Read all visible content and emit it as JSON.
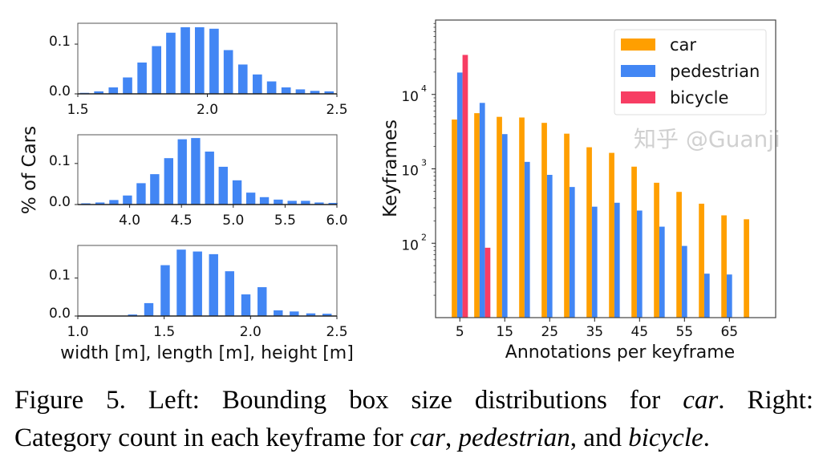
{
  "colors": {
    "car": "#ff9f00",
    "pedestrian": "#4286f4",
    "bicycle": "#f73d63",
    "hist": "#4286f4"
  },
  "chart_data": [
    {
      "type": "bar",
      "panel": "left-top",
      "xlim": [
        1.5,
        2.5
      ],
      "ylim": [
        0,
        0.142
      ],
      "xticks": [
        "1.5",
        "2.0",
        "2.5"
      ],
      "yticks": [
        "0.0",
        "0.1"
      ],
      "x": [
        1.526,
        1.581,
        1.637,
        1.692,
        1.748,
        1.804,
        1.859,
        1.915,
        1.97,
        2.026,
        2.081,
        2.137,
        2.193,
        2.248,
        2.304,
        2.359,
        2.415,
        2.47
      ],
      "values": [
        0.002,
        0.005,
        0.013,
        0.033,
        0.063,
        0.096,
        0.123,
        0.134,
        0.134,
        0.131,
        0.088,
        0.059,
        0.039,
        0.025,
        0.013,
        0.009,
        0.006,
        0.005
      ]
    },
    {
      "type": "bar",
      "panel": "left-middle",
      "ylabel": "% of Cars",
      "xlim": [
        3.5,
        6.0
      ],
      "ylim": [
        0,
        0.17
      ],
      "xticks": [
        "4.0",
        "4.5",
        "5.0",
        "5.5",
        "6.0"
      ],
      "yticks": [
        "0.0",
        "0.1"
      ],
      "x": [
        3.577,
        3.714,
        3.848,
        3.979,
        4.111,
        4.242,
        4.377,
        4.508,
        4.637,
        4.771,
        4.903,
        5.037,
        5.169,
        5.3,
        5.434,
        5.568,
        5.697,
        5.829,
        5.963
      ],
      "values": [
        0.003,
        0.005,
        0.011,
        0.022,
        0.052,
        0.074,
        0.113,
        0.159,
        0.162,
        0.129,
        0.092,
        0.059,
        0.029,
        0.018,
        0.012,
        0.009,
        0.009,
        0.005,
        0.004
      ]
    },
    {
      "type": "bar",
      "panel": "left-bottom",
      "xlabel": "width [m], length [m], height [m]",
      "xlim": [
        1.0,
        2.5
      ],
      "ylim": [
        0,
        0.186
      ],
      "xticks": [
        "1.0",
        "1.5",
        "2.0",
        "2.5"
      ],
      "yticks": [
        "0.0",
        "0.1"
      ],
      "x": [
        1.317,
        1.411,
        1.506,
        1.599,
        1.693,
        1.786,
        1.879,
        1.973,
        2.067,
        2.16,
        2.253,
        2.349,
        2.443
      ],
      "values": [
        0.004,
        0.034,
        0.134,
        0.175,
        0.17,
        0.163,
        0.118,
        0.057,
        0.076,
        0.015,
        0.012,
        0.007,
        0.006
      ]
    },
    {
      "type": "bar",
      "panel": "right",
      "xlabel": "Annotations per keyframe",
      "ylabel": "Keyframes",
      "yscale": "log",
      "xlim": [
        -0.4,
        75.3
      ],
      "ylim": [
        10,
        100000
      ],
      "xticks": [
        "5",
        "15",
        "25",
        "35",
        "45",
        "55",
        "65"
      ],
      "yticks": [
        {
          "base": "10",
          "exp": "2"
        },
        {
          "base": "10",
          "exp": "3"
        },
        {
          "base": "10",
          "exp": "4"
        }
      ],
      "legend": "top-right",
      "categories": [
        5,
        10,
        15,
        20,
        25,
        30,
        35,
        40,
        45,
        50,
        55,
        60,
        65,
        70
      ],
      "series": [
        {
          "name": "car",
          "values": [
            4600,
            5600,
            5000,
            4900,
            4150,
            2970,
            1950,
            1640,
            1070,
            650,
            490,
            340,
            237,
            210
          ]
        },
        {
          "name": "pedestrian",
          "values": [
            19700,
            7700,
            2930,
            1240,
            830,
            570,
            310,
            350,
            275,
            167,
            92,
            39,
            38,
            null
          ]
        },
        {
          "name": "bicycle",
          "values": [
            34000,
            87,
            null,
            null,
            null,
            null,
            null,
            null,
            null,
            null,
            null,
            null,
            null,
            null
          ]
        }
      ]
    }
  ],
  "caption": {
    "line1_prefix": "Figure 5. Left:  Bounding box size distributions for ",
    "line1_em": "car",
    "line1_mid": ".  Right:",
    "line2_prefix": "Category count in each keyframe for ",
    "line2_em1": "car",
    "line2_sep1": ", ",
    "line2_em2": "pedestrian",
    "line2_sep2": ", and ",
    "line2_em3": "bicycle",
    "line2_end": "."
  },
  "watermark": "知乎 @Guanji"
}
